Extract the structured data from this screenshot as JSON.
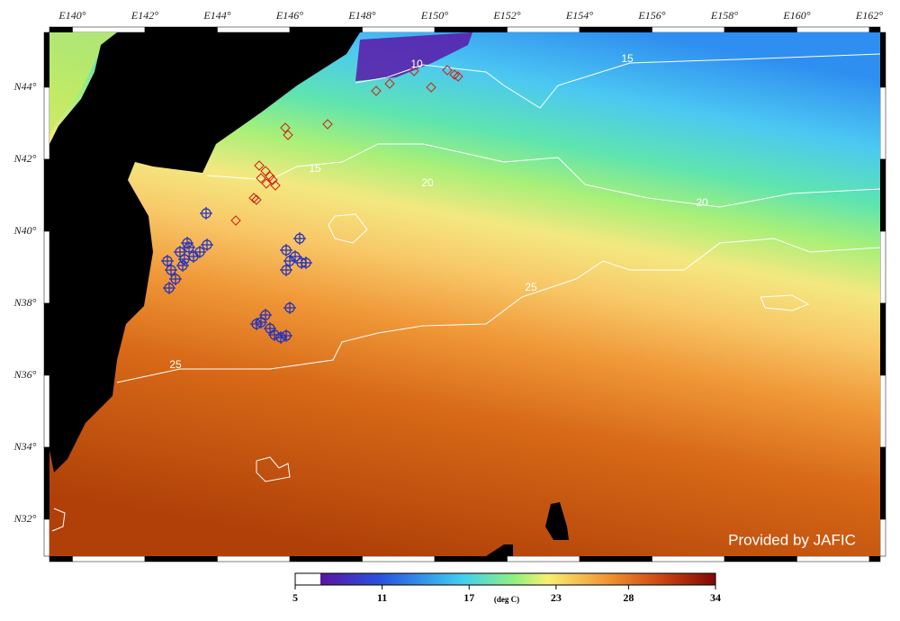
{
  "map": {
    "lon_labels": [
      "E140°",
      "E142°",
      "E144°",
      "E146°",
      "E148°",
      "E150°",
      "E152°",
      "E154°",
      "E156°",
      "E158°",
      "E160°",
      "E162°"
    ],
    "lat_labels": [
      "N44°",
      "N42°",
      "N40°",
      "N38°",
      "N36°",
      "N34°",
      "N32°"
    ],
    "contour_labels": [
      "10",
      "15",
      "15",
      "20",
      "20",
      "25",
      "25"
    ],
    "credit": "Provided by JAFIC"
  },
  "colorbar": {
    "ticks": [
      5,
      11,
      17,
      23,
      28,
      34
    ],
    "unit": "(deg C)"
  }
}
